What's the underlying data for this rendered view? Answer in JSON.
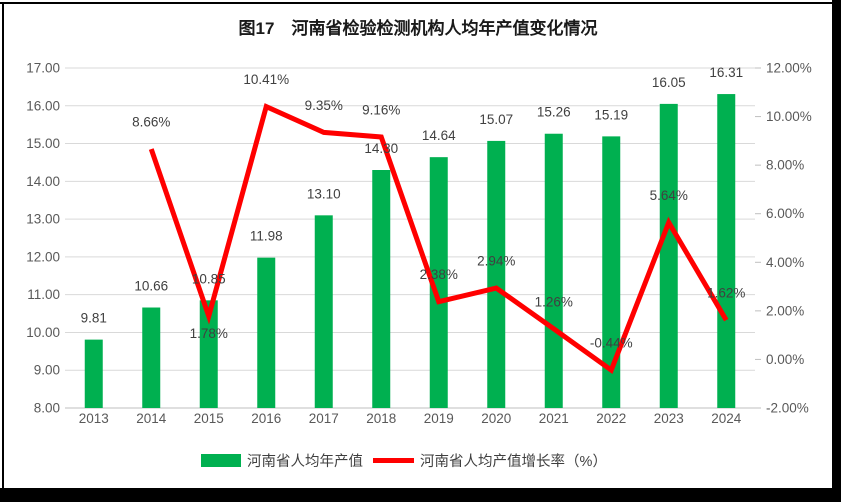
{
  "title": "图17　河南省检验检测机构人均年产值变化情况",
  "colors": {
    "bar": "#00B050",
    "line": "#FF0000",
    "gridline": "#D9D9D9",
    "axis_line": "#BFBFBF",
    "axis_text": "#595959",
    "data_label_text": "#404040",
    "title_text": "#1a1a1a",
    "frame": "#000000"
  },
  "chart_data": {
    "type": "combo_bar_line",
    "title": "图17　河南省检验检测机构人均年产值变化情况",
    "categories": [
      "2013",
      "2014",
      "2015",
      "2016",
      "2017",
      "2018",
      "2019",
      "2020",
      "2021",
      "2022",
      "2023",
      "2024"
    ],
    "series": [
      {
        "name": "河南省人均年产值",
        "type": "bar",
        "axis": "left",
        "color": "#00B050",
        "values": [
          9.81,
          10.66,
          10.85,
          11.98,
          13.1,
          14.3,
          14.64,
          15.07,
          15.26,
          15.19,
          16.05,
          16.31
        ],
        "labels": [
          "9.81",
          "10.66",
          "10.85",
          "11.98",
          "13.10",
          "14.30",
          "14.64",
          "15.07",
          "15.26",
          "15.19",
          "16.05",
          "16.31"
        ]
      },
      {
        "name": "河南省人均产值增长率（%）",
        "type": "line",
        "axis": "right",
        "color": "#FF0000",
        "values": [
          null,
          8.66,
          1.78,
          10.41,
          9.35,
          9.16,
          2.38,
          2.94,
          1.26,
          -0.44,
          5.64,
          1.62
        ],
        "labels": [
          null,
          "8.66%",
          "1.78%",
          "10.41%",
          "9.35%",
          "9.16%",
          "2.38%",
          "2.94%",
          "1.26%",
          "-0.44%",
          "5.64%",
          "1.62%"
        ],
        "labels_below_point": [
          2
        ]
      }
    ],
    "axes": {
      "left": {
        "min": 8,
        "max": 17,
        "step": 1,
        "decimals": 2,
        "suffix": "",
        "tick_labels": [
          "8.00",
          "9.00",
          "10.00",
          "11.00",
          "12.00",
          "13.00",
          "14.00",
          "15.00",
          "16.00",
          "17.00"
        ]
      },
      "right": {
        "min": -2,
        "max": 12,
        "step": 2,
        "decimals": 2,
        "suffix": "%",
        "tick_labels": [
          "-2.00%",
          "0.00%",
          "2.00%",
          "4.00%",
          "6.00%",
          "8.00%",
          "10.00%",
          "12.00%"
        ]
      }
    },
    "grid": true,
    "legend_position": "bottom"
  }
}
